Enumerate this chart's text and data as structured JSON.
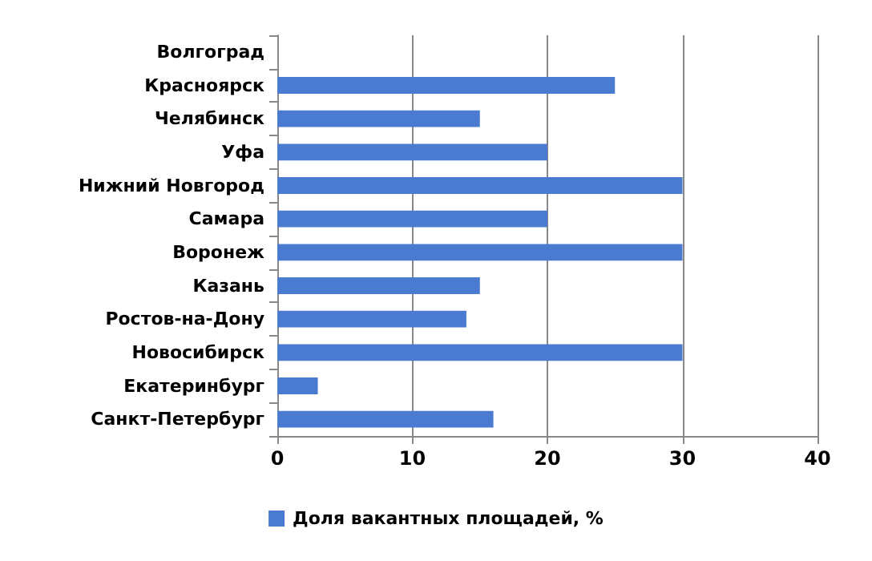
{
  "chart_data": {
    "type": "bar",
    "orientation": "horizontal",
    "categories": [
      "Волгоград",
      "Красноярск",
      "Челябинск",
      "Уфа",
      "Нижний Новгород",
      "Самара",
      "Воронеж",
      "Казань",
      "Ростов-на-Дону",
      "Новосибирск",
      "Екатеринбург",
      "Санкт-Петербург"
    ],
    "series": [
      {
        "name": "Доля вакантных площадей, %",
        "color": "#4a7bd0",
        "values": [
          null,
          25,
          15,
          20,
          30,
          20,
          30,
          15,
          14,
          30,
          3,
          16
        ]
      }
    ],
    "xlim": [
      0,
      40
    ],
    "xticks": [
      0,
      10,
      20,
      30,
      40
    ],
    "grid": "x",
    "legend": "bottom"
  }
}
